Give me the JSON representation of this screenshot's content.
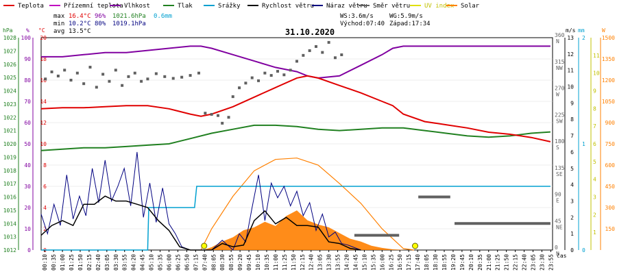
{
  "chart_data": {
    "type": "line",
    "title": "31.10.2020",
    "legend": [
      {
        "label": "Teplota",
        "color": "#e00000"
      },
      {
        "label": "Přízemní teplota",
        "color": "#c000c0"
      },
      {
        "label": "Vlhkost",
        "color": "#8000a0"
      },
      {
        "label": "Tlak",
        "color": "#208020"
      },
      {
        "label": "Srážky",
        "color": "#00a0d0"
      },
      {
        "label": "Rychlost větru",
        "color": "#000000"
      },
      {
        "label": "Náraz větru",
        "color": "#000080"
      },
      {
        "label": "Směr větru",
        "color": "#606060"
      },
      {
        "label": "UV index",
        "color": "#e0e000"
      },
      {
        "label": "Solar",
        "color": "#ff8000"
      }
    ],
    "stats": {
      "max_label": "max",
      "max_temp": "16.4°C",
      "max_hum": "96%",
      "max_press": "1021.6hPa",
      "rain": "0.6mm",
      "min_label": "min",
      "min_temp": "10.2°C",
      "min_hum": "80%",
      "min_press": "1019.1hPa",
      "avg_label": "avg",
      "avg_temp": "13.5°C",
      "ws": "WS:3.6m/s",
      "wg": "WG:5.9m/s",
      "sunrise": "Východ:07:40",
      "sunset": "Západ:17:34"
    },
    "axes": {
      "hpa": {
        "unit": "hPa",
        "color": "#208020",
        "range": [
          1012,
          1028
        ],
        "ticks": [
          "1012",
          "1013",
          "1014",
          "1015",
          "1016",
          "1017",
          "1018",
          "1019",
          "1020",
          "1021",
          "1022",
          "1023",
          "1024",
          "1025",
          "1026",
          "1027",
          "1028"
        ]
      },
      "pct": {
        "unit": "%",
        "color": "#8000a0",
        "range": [
          0,
          100
        ],
        "ticks": [
          "0",
          "10",
          "20",
          "30",
          "40",
          "50",
          "60",
          "70",
          "80",
          "90",
          "100"
        ]
      },
      "temp": {
        "unit": "°C",
        "color": "#e00000",
        "range": [
          0,
          20
        ],
        "ticks": [
          "0",
          "2",
          "4",
          "6",
          "8",
          "10",
          "12",
          "14",
          "16",
          "18",
          "20"
        ]
      },
      "dir": {
        "unit": "°",
        "color": "#606060",
        "range": [
          0,
          360
        ],
        "ticks": [
          "0",
          "45",
          "90",
          "135",
          "180",
          "225",
          "270",
          "315",
          "360"
        ],
        "compass": [
          "N",
          "NE",
          "E",
          "SE",
          "S",
          "SW",
          "W",
          "NW",
          "N"
        ]
      },
      "ms": {
        "unit": "m/s",
        "color": "#000000",
        "range": [
          0,
          13
        ],
        "ticks": [
          "0",
          "1",
          "2",
          "3",
          "4",
          "5",
          "6",
          "7",
          "8",
          "9",
          "10",
          "11",
          "12",
          "13"
        ]
      },
      "mm": {
        "unit": "mm",
        "color": "#00a0d0",
        "range": [
          0,
          2
        ],
        "ticks": [
          "0",
          "1",
          "2"
        ]
      },
      "uv": {
        "unit": "uv",
        "color": "#c0c000",
        "range": [
          0,
          12
        ],
        "ticks": [
          "1",
          "2",
          "3",
          "4",
          "5",
          "6",
          "7",
          "8",
          "9",
          "10",
          "11"
        ]
      },
      "w": {
        "unit": "W",
        "color": "#ff8000",
        "range": [
          0,
          1500
        ],
        "ticks": [
          "150",
          "300",
          "450",
          "600",
          "750",
          "900",
          "1050",
          "1200",
          "1350",
          "1500"
        ]
      }
    },
    "x_label": "čas",
    "x_ticks": [
      "00:10",
      "00:35",
      "01:00",
      "01:25",
      "01:50",
      "02:15",
      "02:40",
      "03:05",
      "03:30",
      "03:55",
      "04:20",
      "04:45",
      "05:10",
      "05:35",
      "06:00",
      "06:25",
      "06:50",
      "07:15",
      "07:40",
      "08:05",
      "08:30",
      "08:55",
      "09:20",
      "09:45",
      "10:10",
      "10:35",
      "11:00",
      "11:25",
      "11:50",
      "12:15",
      "12:40",
      "13:05",
      "13:30",
      "13:55",
      "14:20",
      "14:45",
      "15:10",
      "15:35",
      "16:00",
      "16:25",
      "16:50",
      "17:15",
      "17:40",
      "18:05",
      "18:30",
      "18:55",
      "19:20",
      "19:45",
      "20:10",
      "20:35",
      "21:00",
      "21:25",
      "21:50",
      "22:15",
      "22:40",
      "23:05",
      "23:30",
      "23:55"
    ],
    "series": {
      "temperature_c": {
        "x": [
          0,
          1,
          2,
          3,
          4,
          5,
          6,
          7,
          7.5,
          8,
          9,
          10,
          11,
          12,
          12.5,
          13,
          14,
          15,
          16,
          16.5,
          17,
          18,
          19,
          20,
          21,
          22,
          23,
          23.9
        ],
        "y": [
          13.3,
          13.4,
          13.4,
          13.5,
          13.6,
          13.6,
          13.3,
          12.8,
          12.6,
          12.8,
          13.5,
          14.4,
          15.3,
          16.2,
          16.4,
          16.2,
          15.5,
          14.8,
          14.0,
          13.6,
          12.8,
          12.1,
          11.8,
          11.5,
          11.1,
          10.9,
          10.6,
          10.2
        ]
      },
      "humidity_pct": {
        "x": [
          0,
          1,
          2,
          3,
          4,
          5,
          6,
          7,
          7.5,
          8,
          9,
          10,
          11,
          12,
          12.5,
          13,
          14,
          15,
          16,
          16.5,
          17,
          18,
          19,
          20,
          21,
          22,
          23,
          23.9
        ],
        "y": [
          91,
          91,
          92,
          93,
          93,
          94,
          95,
          96,
          96,
          95,
          92,
          89,
          86,
          84,
          82,
          81,
          82,
          87,
          92,
          95,
          96,
          96,
          96,
          96,
          96,
          96,
          96,
          96
        ]
      },
      "pressure_hpa": {
        "x": [
          0,
          1,
          2,
          3,
          4,
          5,
          6,
          7,
          8,
          9,
          10,
          11,
          12,
          13,
          14,
          15,
          16,
          17,
          18,
          19,
          20,
          21,
          22,
          23,
          23.9
        ],
        "y": [
          1019.5,
          1019.6,
          1019.7,
          1019.7,
          1019.8,
          1019.9,
          1020.0,
          1020.4,
          1020.8,
          1021.1,
          1021.4,
          1021.4,
          1021.3,
          1021.1,
          1021.0,
          1021.1,
          1021.2,
          1021.2,
          1021.0,
          1020.8,
          1020.6,
          1020.5,
          1020.6,
          1020.8,
          1020.9
        ]
      },
      "rain_mm": {
        "x": [
          0,
          5.0,
          5.05,
          6.2,
          6.25,
          7.2,
          7.3,
          23.9
        ],
        "y": [
          0,
          0,
          0.4,
          0.4,
          0.4,
          0.4,
          0.6,
          0.6
        ]
      },
      "wind_speed_ms": {
        "x": [
          0,
          0.5,
          1,
          1.5,
          2,
          2.5,
          3,
          3.5,
          4,
          4.5,
          5,
          5.5,
          6,
          6.5,
          7,
          7.5,
          8,
          8.5,
          9,
          9.5,
          10,
          10.5,
          11,
          11.5,
          12,
          12.5,
          13,
          13.5,
          14,
          14.5,
          15
        ],
        "y": [
          0.9,
          1.5,
          1.8,
          1.5,
          2.8,
          2.8,
          3.3,
          3.0,
          3.0,
          2.8,
          2.6,
          1.8,
          1.2,
          0.2,
          0,
          0,
          0,
          0.4,
          0.2,
          0.3,
          1.8,
          2.4,
          1.6,
          2.0,
          1.5,
          1.5,
          1.4,
          0.5,
          0.4,
          0.1,
          0
        ]
      },
      "wind_gust_ms": {
        "x": [
          0,
          0.3,
          0.6,
          0.9,
          1.2,
          1.5,
          1.8,
          2.1,
          2.4,
          2.7,
          3.0,
          3.3,
          3.6,
          3.9,
          4.2,
          4.5,
          4.8,
          5.1,
          5.4,
          5.7,
          6.0,
          6.3,
          6.6,
          7,
          8,
          8.5,
          9,
          9.3,
          9.6,
          9.9,
          10.2,
          10.5,
          10.8,
          11.1,
          11.4,
          11.7,
          12.0,
          12.3,
          12.6,
          12.9,
          13.2,
          13.5,
          13.8,
          14.1,
          14.4,
          15
        ],
        "y": [
          2.2,
          1.0,
          2.8,
          1.5,
          4.6,
          1.9,
          3.3,
          2.1,
          5.0,
          2.9,
          5.5,
          3.0,
          3.9,
          5.0,
          2.7,
          6.0,
          2.0,
          4.1,
          1.7,
          3.8,
          1.6,
          1.0,
          0.2,
          0,
          0,
          0.6,
          0,
          1.0,
          0.5,
          2.6,
          4.6,
          1.8,
          4.1,
          3.2,
          3.9,
          2.7,
          3.6,
          2.1,
          2.9,
          1.2,
          2.2,
          0.8,
          1.1,
          0.4,
          0.3,
          0
        ]
      },
      "wind_dir_deg": {
        "pts": [
          [
            0.2,
            290
          ],
          [
            0.5,
            302
          ],
          [
            0.8,
            295
          ],
          [
            1.1,
            305
          ],
          [
            1.4,
            288
          ],
          [
            1.7,
            300
          ],
          [
            2.0,
            282
          ],
          [
            2.3,
            310
          ],
          [
            2.6,
            276
          ],
          [
            2.9,
            298
          ],
          [
            3.2,
            286
          ],
          [
            3.5,
            305
          ],
          [
            3.8,
            279
          ],
          [
            4.1,
            294
          ],
          [
            4.4,
            300
          ],
          [
            4.7,
            286
          ],
          [
            5.0,
            290
          ],
          [
            5.4,
            299
          ],
          [
            5.8,
            294
          ],
          [
            6.2,
            291
          ],
          [
            6.6,
            293
          ],
          [
            7.0,
            296
          ],
          [
            7.4,
            300
          ],
          [
            7.7,
            232
          ],
          [
            8.0,
            230
          ],
          [
            8.3,
            228
          ],
          [
            8.5,
            215
          ],
          [
            8.8,
            225
          ],
          [
            9.0,
            260
          ],
          [
            9.3,
            275
          ],
          [
            9.6,
            283
          ],
          [
            9.9,
            292
          ],
          [
            10.2,
            287
          ],
          [
            10.5,
            300
          ],
          [
            10.8,
            296
          ],
          [
            11.1,
            303
          ],
          [
            11.4,
            297
          ],
          [
            11.7,
            305
          ],
          [
            12.0,
            320
          ],
          [
            12.3,
            330
          ],
          [
            12.6,
            338
          ],
          [
            12.9,
            345
          ],
          [
            13.2,
            335
          ],
          [
            13.5,
            352
          ],
          [
            13.8,
            326
          ],
          [
            14.1,
            331
          ]
        ],
        "segments": [
          [
            14.7,
            16.8,
            25
          ],
          [
            17.7,
            19.2,
            90
          ],
          [
            19.4,
            23.9,
            45
          ]
        ]
      },
      "solar_w": {
        "x": [
          7.6,
          8.0,
          8.5,
          9.0,
          9.5,
          10.0,
          10.5,
          11.0,
          11.5,
          12.0,
          12.5,
          13.0,
          13.5,
          14.0,
          14.5,
          15.0,
          15.5,
          16.0,
          16.5,
          17.2
        ],
        "y": [
          0,
          20,
          60,
          90,
          140,
          160,
          200,
          170,
          240,
          280,
          210,
          180,
          160,
          120,
          80,
          60,
          30,
          15,
          5,
          0
        ]
      },
      "solar_theoretical_w": {
        "x": [
          7.5,
          8,
          9,
          10,
          11,
          12,
          13,
          14,
          15,
          16,
          17,
          17.5
        ],
        "y": [
          0,
          150,
          380,
          560,
          640,
          650,
          600,
          470,
          330,
          150,
          10,
          0
        ]
      },
      "uv_markers_h": [
        7.65,
        17.55
      ]
    }
  }
}
